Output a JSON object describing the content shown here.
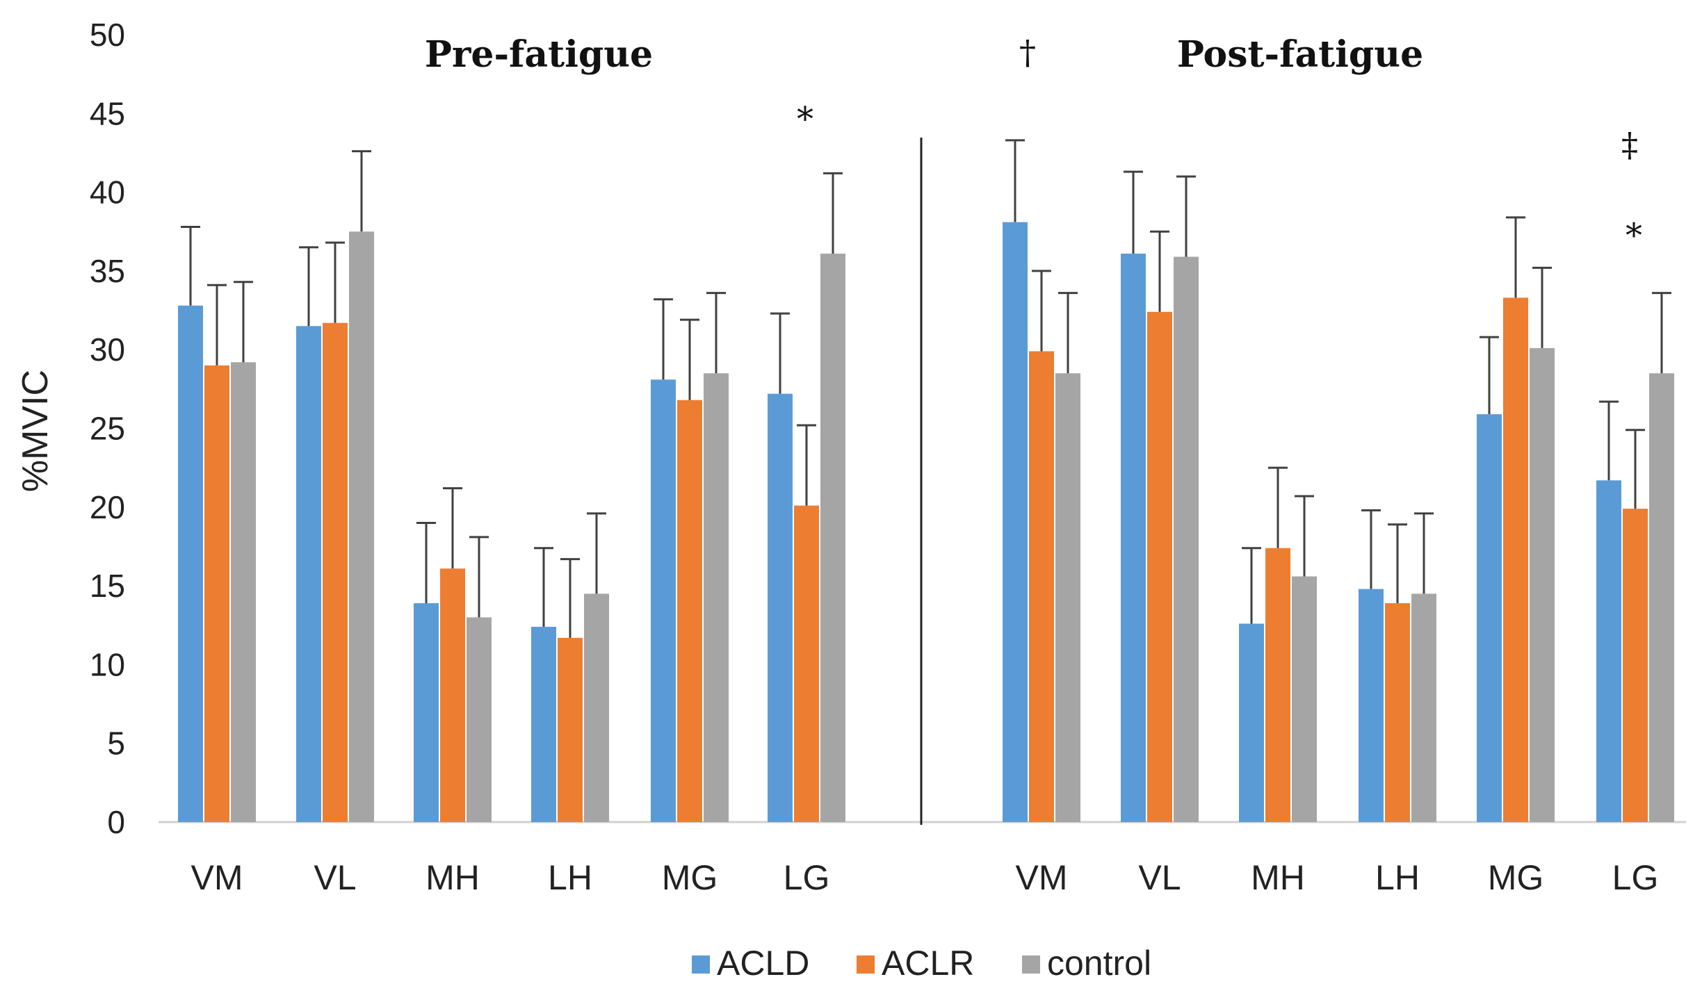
{
  "chart_data": {
    "type": "bar",
    "ylabel": "%MVIC",
    "ylim": [
      0,
      50
    ],
    "yticks": [
      0,
      5,
      10,
      15,
      20,
      25,
      30,
      35,
      40,
      45,
      50
    ],
    "grid": false,
    "legend_position": "bottom",
    "colors": {
      "ACLD": "#5b9bd5",
      "ACLR": "#ed7d31",
      "control": "#a5a5a5"
    },
    "panels": [
      {
        "title": "Pre-fatigue",
        "categories": [
          "VM",
          "VL",
          "MH",
          "LH",
          "MG",
          "LG"
        ],
        "series": [
          {
            "name": "ACLD",
            "values": [
              32.8,
              31.5,
              13.9,
              12.4,
              28.1,
              27.2
            ],
            "errors": [
              5.0,
              5.0,
              5.1,
              5.0,
              5.1,
              5.1
            ]
          },
          {
            "name": "ACLR",
            "values": [
              29.0,
              31.7,
              16.1,
              11.7,
              26.8,
              20.1
            ],
            "errors": [
              5.1,
              5.1,
              5.1,
              5.0,
              5.1,
              5.1
            ]
          },
          {
            "name": "control",
            "values": [
              29.2,
              37.5,
              13.0,
              14.5,
              28.5,
              36.1
            ],
            "errors": [
              5.1,
              5.1,
              5.1,
              5.1,
              5.1,
              5.1
            ]
          }
        ],
        "annotations": [
          {
            "text": "*",
            "category": "LG"
          }
        ]
      },
      {
        "title": "Post-fatigue",
        "categories": [
          "VM",
          "VL",
          "MH",
          "LH",
          "MG",
          "LG"
        ],
        "series": [
          {
            "name": "ACLD",
            "values": [
              38.1,
              36.1,
              12.6,
              14.8,
              25.9,
              21.7
            ],
            "errors": [
              5.2,
              5.2,
              4.8,
              5.0,
              4.9,
              5.0
            ]
          },
          {
            "name": "ACLR",
            "values": [
              29.9,
              32.4,
              17.4,
              13.9,
              33.3,
              19.9
            ],
            "errors": [
              5.1,
              5.1,
              5.1,
              5.0,
              5.1,
              5.0
            ]
          },
          {
            "name": "control",
            "values": [
              28.5,
              35.9,
              15.6,
              14.5,
              30.1,
              28.5
            ],
            "errors": [
              5.1,
              5.1,
              5.1,
              5.1,
              5.1,
              5.1
            ]
          }
        ],
        "annotations": [
          {
            "text": "†",
            "category": "VM"
          },
          {
            "text": "‡",
            "category": "LG"
          },
          {
            "text": "*",
            "category": "LG"
          }
        ]
      }
    ]
  }
}
